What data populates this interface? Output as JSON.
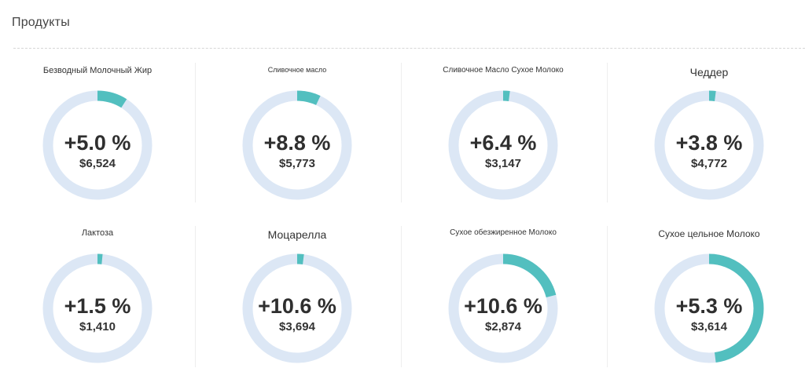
{
  "header": {
    "title": "Продукты"
  },
  "colors": {
    "track": "#dce7f5",
    "fill": "#52bfbf",
    "divider": "#eeeeee"
  },
  "chart_data": {
    "type": "donut-grid",
    "items": [
      {
        "title": "Безводный Молочный Жир",
        "pct_label": "+5.0 %",
        "value_label": "$6,524",
        "fill_fraction": 0.09
      },
      {
        "title": "Сливочное масло",
        "pct_label": "+8.8 %",
        "value_label": "$5,773",
        "fill_fraction": 0.07
      },
      {
        "title": "Сливочное Масло Сухое Молоко",
        "pct_label": "+6.4 %",
        "value_label": "$3,147",
        "fill_fraction": 0.02
      },
      {
        "title": "Чеддер",
        "pct_label": "+3.8 %",
        "value_label": "$4,772",
        "fill_fraction": 0.02
      },
      {
        "title": "Лактоза",
        "pct_label": "+1.5 %",
        "value_label": "$1,410",
        "fill_fraction": 0.015
      },
      {
        "title": "Моцарелла",
        "pct_label": "+10.6 %",
        "value_label": "$3,694",
        "fill_fraction": 0.02
      },
      {
        "title": "Сухое обезжиренное Молоко",
        "pct_label": "+10.6 %",
        "value_label": "$2,874",
        "fill_fraction": 0.21
      },
      {
        "title": "Сухое цельное Молоко",
        "pct_label": "+5.3 %",
        "value_label": "$3,614",
        "fill_fraction": 0.48
      }
    ]
  }
}
